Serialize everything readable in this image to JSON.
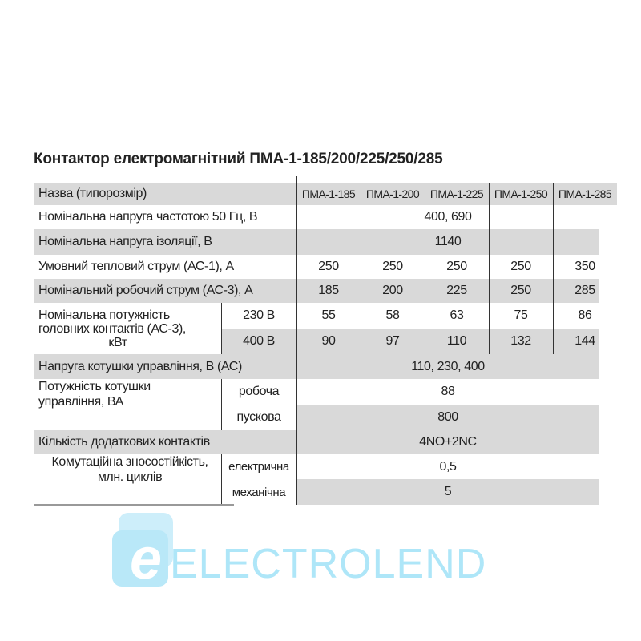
{
  "title": "Контактор електромагнітний ПМА-1-185/200/225/250/285",
  "header": {
    "label": "Назва (типорозмір)",
    "models": [
      "ПМА-1-185",
      "ПМА-1-200",
      "ПМА-1-225",
      "ПМА-1-250",
      "ПМА-1-285"
    ]
  },
  "rows": {
    "voltage": {
      "label": "Номінальна напруга частотою 50 Гц, В",
      "value": "400, 690"
    },
    "insulation": {
      "label": "Номінальна напруга ізоляції, В",
      "value": "1140"
    },
    "thermal": {
      "label": "Умовний тепловий струм (АС-1), А",
      "values": [
        "250",
        "250",
        "250",
        "250",
        "350"
      ]
    },
    "operating": {
      "label": "Номінальний робочий струм (АС-3), А",
      "values": [
        "185",
        "200",
        "225",
        "250",
        "285"
      ]
    },
    "power": {
      "label_1": "Номінальна потужність",
      "label_2": "головних контактів (АС-3),",
      "label_3": "кВт",
      "sub": [
        {
          "label": "230 В",
          "values": [
            "55",
            "58",
            "63",
            "75",
            "86"
          ]
        },
        {
          "label": "400 В",
          "values": [
            "90",
            "97",
            "110",
            "132",
            "144"
          ]
        }
      ]
    },
    "coil_voltage": {
      "label": "Напруга котушки управління, В (АС)",
      "value": "110, 230, 400"
    },
    "coil_power": {
      "label_1": "Потужність котушки",
      "label_2": "управління, ВА",
      "sub": [
        {
          "label": "робоча",
          "value": "88"
        },
        {
          "label": "пускова",
          "value": "800"
        }
      ]
    },
    "aux": {
      "label": "Кількість додаткових контактів",
      "value": "4NO+2NC"
    },
    "durability": {
      "label_1": "Комутаційна зносостійкість,",
      "label_2": "млн. циклів",
      "sub": [
        {
          "label": "електрична",
          "value": "0,5"
        },
        {
          "label": "механічна",
          "value": "5"
        }
      ]
    }
  },
  "logo": {
    "letter": "e",
    "text": "ELECTROLEND",
    "color": "#aee6f8"
  }
}
